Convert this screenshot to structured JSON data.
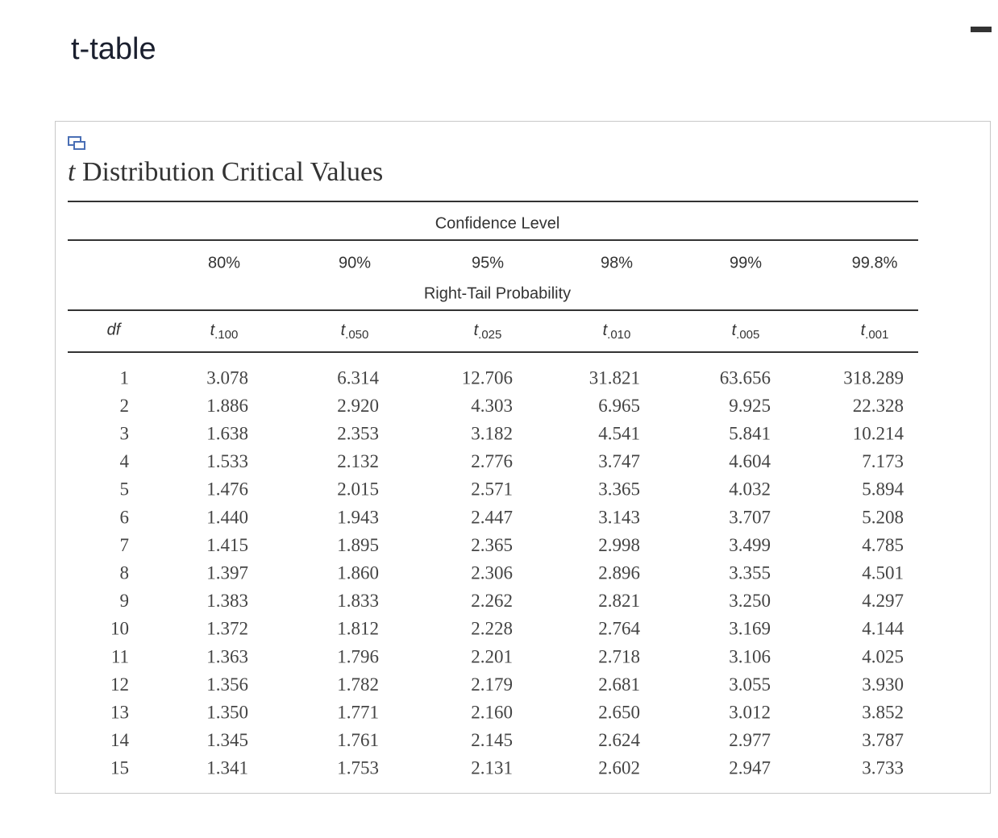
{
  "header": {
    "title": "t-table"
  },
  "table": {
    "title_symbol": "t",
    "title_text": "Distribution Critical Values",
    "group_label": "Confidence Level",
    "confidence_levels": [
      "80%",
      "90%",
      "95%",
      "98%",
      "99%",
      "99.8%"
    ],
    "subgroup_label": "Right-Tail Probability",
    "df_label": "df",
    "columns": [
      {
        "symbol": "t",
        "subscript": ".100"
      },
      {
        "symbol": "t",
        "subscript": ".050"
      },
      {
        "symbol": "t",
        "subscript": ".025"
      },
      {
        "symbol": "t",
        "subscript": ".010"
      },
      {
        "symbol": "t",
        "subscript": ".005"
      },
      {
        "symbol": "t",
        "subscript": ".001"
      }
    ],
    "rows": [
      [
        "1",
        "3.078",
        "6.314",
        "12.706",
        "31.821",
        "63.656",
        "318.289"
      ],
      [
        "2",
        "1.886",
        "2.920",
        "4.303",
        "6.965",
        "9.925",
        "22.328"
      ],
      [
        "3",
        "1.638",
        "2.353",
        "3.182",
        "4.541",
        "5.841",
        "10.214"
      ],
      [
        "4",
        "1.533",
        "2.132",
        "2.776",
        "3.747",
        "4.604",
        "7.173"
      ],
      [
        "5",
        "1.476",
        "2.015",
        "2.571",
        "3.365",
        "4.032",
        "5.894"
      ],
      [
        "6",
        "1.440",
        "1.943",
        "2.447",
        "3.143",
        "3.707",
        "5.208"
      ],
      [
        "7",
        "1.415",
        "1.895",
        "2.365",
        "2.998",
        "3.499",
        "4.785"
      ],
      [
        "8",
        "1.397",
        "1.860",
        "2.306",
        "2.896",
        "3.355",
        "4.501"
      ],
      [
        "9",
        "1.383",
        "1.833",
        "2.262",
        "2.821",
        "3.250",
        "4.297"
      ],
      [
        "10",
        "1.372",
        "1.812",
        "2.228",
        "2.764",
        "3.169",
        "4.144"
      ],
      [
        "11",
        "1.363",
        "1.796",
        "2.201",
        "2.718",
        "3.106",
        "4.025"
      ],
      [
        "12",
        "1.356",
        "1.782",
        "2.179",
        "2.681",
        "3.055",
        "3.930"
      ],
      [
        "13",
        "1.350",
        "1.771",
        "2.160",
        "2.650",
        "3.012",
        "3.852"
      ],
      [
        "14",
        "1.345",
        "1.761",
        "2.145",
        "2.624",
        "2.977",
        "3.787"
      ],
      [
        "15",
        "1.341",
        "1.753",
        "2.131",
        "2.602",
        "2.947",
        "3.733"
      ]
    ]
  }
}
